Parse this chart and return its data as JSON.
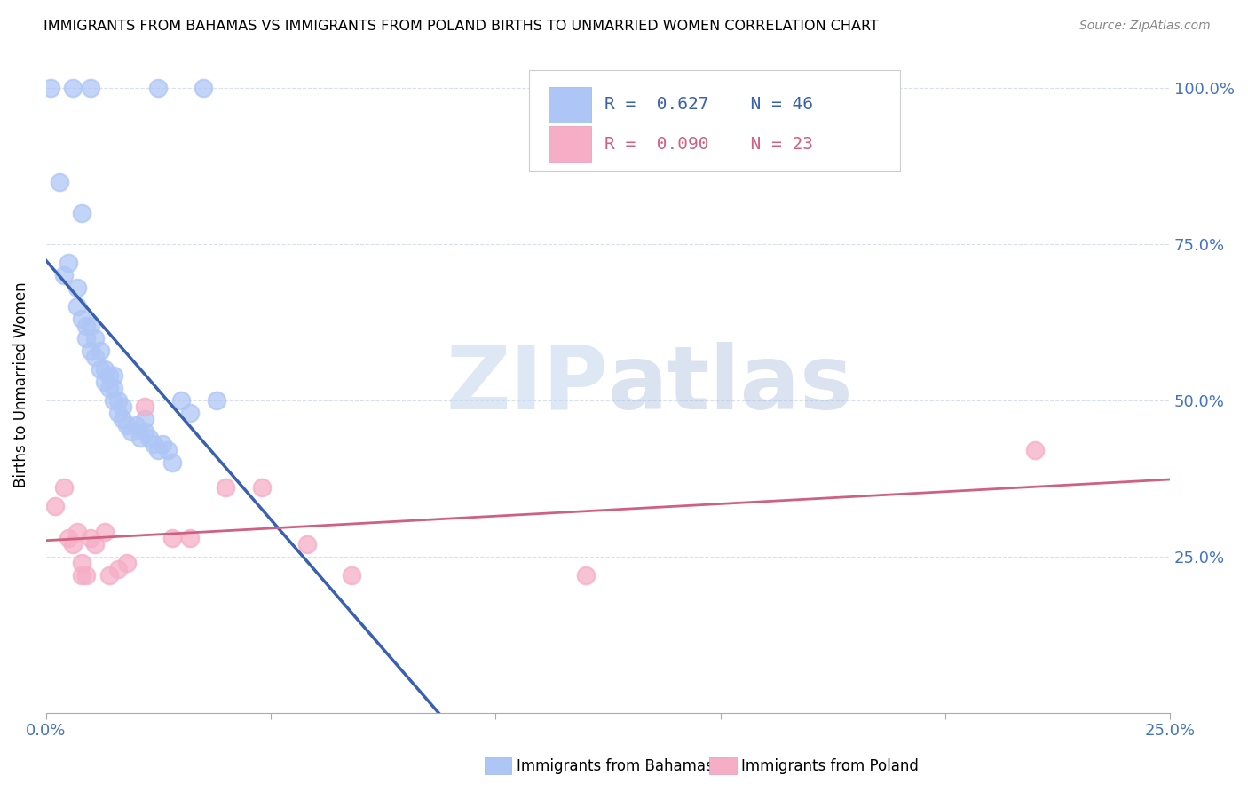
{
  "title": "IMMIGRANTS FROM BAHAMAS VS IMMIGRANTS FROM POLAND BIRTHS TO UNMARRIED WOMEN CORRELATION CHART",
  "source": "Source: ZipAtlas.com",
  "legend_bahamas": "Immigrants from Bahamas",
  "legend_poland": "Immigrants from Poland",
  "R_bahamas": 0.627,
  "N_bahamas": 46,
  "R_poland": 0.09,
  "N_poland": 23,
  "color_bahamas": "#aec6f5",
  "color_poland": "#f5aec6",
  "line_color_bahamas": "#3a60b0",
  "line_color_poland": "#d06080",
  "watermark_zip": "ZIP",
  "watermark_atlas": "atlas",
  "bahamas_x": [
    0.001,
    0.006,
    0.01,
    0.025,
    0.035,
    0.003,
    0.008,
    0.004,
    0.005,
    0.007,
    0.007,
    0.008,
    0.009,
    0.009,
    0.01,
    0.01,
    0.011,
    0.011,
    0.012,
    0.012,
    0.013,
    0.013,
    0.014,
    0.014,
    0.015,
    0.015,
    0.015,
    0.016,
    0.016,
    0.017,
    0.017,
    0.018,
    0.019,
    0.02,
    0.021,
    0.022,
    0.022,
    0.023,
    0.024,
    0.025,
    0.026,
    0.027,
    0.028,
    0.03,
    0.032,
    0.038
  ],
  "bahamas_y": [
    1.0,
    1.0,
    1.0,
    1.0,
    1.0,
    0.85,
    0.8,
    0.7,
    0.72,
    0.68,
    0.65,
    0.63,
    0.62,
    0.6,
    0.62,
    0.58,
    0.6,
    0.57,
    0.55,
    0.58,
    0.53,
    0.55,
    0.52,
    0.54,
    0.5,
    0.52,
    0.54,
    0.48,
    0.5,
    0.47,
    0.49,
    0.46,
    0.45,
    0.46,
    0.44,
    0.45,
    0.47,
    0.44,
    0.43,
    0.42,
    0.43,
    0.42,
    0.4,
    0.5,
    0.48,
    0.5
  ],
  "poland_x": [
    0.002,
    0.004,
    0.005,
    0.006,
    0.007,
    0.008,
    0.008,
    0.009,
    0.01,
    0.011,
    0.013,
    0.014,
    0.016,
    0.018,
    0.022,
    0.028,
    0.032,
    0.04,
    0.048,
    0.058,
    0.068,
    0.12,
    0.22
  ],
  "poland_y": [
    0.33,
    0.36,
    0.28,
    0.27,
    0.29,
    0.22,
    0.24,
    0.22,
    0.28,
    0.27,
    0.29,
    0.22,
    0.23,
    0.24,
    0.49,
    0.28,
    0.28,
    0.36,
    0.36,
    0.27,
    0.22,
    0.22,
    0.42
  ],
  "xmin": 0.0,
  "xmax": 0.25,
  "ymin": 0.0,
  "ymax": 1.05,
  "yticks": [
    0.0,
    0.25,
    0.5,
    0.75,
    1.0
  ],
  "ytick_labels": [
    "",
    "25.0%",
    "50.0%",
    "75.0%",
    "100.0%"
  ],
  "xtick_labels_show": [
    "0.0%",
    "25.0%"
  ],
  "grid_color": "#d8e0ee",
  "tick_color": "#4472c4",
  "ylabel": "Births to Unmarried Women"
}
